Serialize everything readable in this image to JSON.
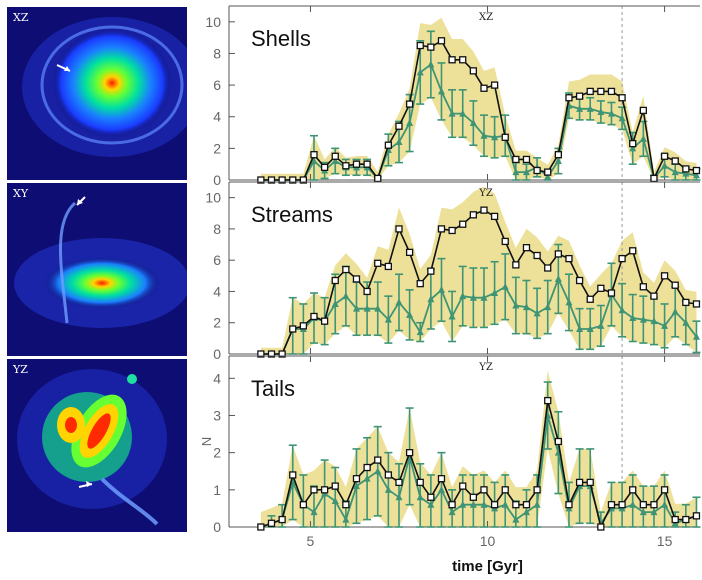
{
  "images": [
    {
      "label": "XZ",
      "icon": "shell-galaxy-arrow"
    },
    {
      "label": "XY",
      "icon": "stream-galaxy-arrow"
    },
    {
      "label": "YZ",
      "icon": "tail-galaxy-arrow"
    }
  ],
  "colors": {
    "band": "#ede19a",
    "black_line": "#111111",
    "green_line": "#3e9475",
    "vline": "#999999"
  },
  "chart_data": {
    "type": "line",
    "xlabel": "time [Gyr]",
    "xlim": [
      2.7,
      16.0
    ],
    "xticks": [
      5,
      10,
      15
    ],
    "vline_x": 13.8,
    "ylabel_shared": "N",
    "x": [
      3.6,
      3.9,
      4.2,
      4.5,
      4.8,
      5.1,
      5.4,
      5.7,
      6.0,
      6.3,
      6.6,
      6.9,
      7.2,
      7.5,
      7.8,
      8.1,
      8.4,
      8.7,
      9.0,
      9.3,
      9.6,
      9.9,
      10.2,
      10.5,
      10.8,
      11.1,
      11.4,
      11.7,
      12.0,
      12.3,
      12.6,
      12.9,
      13.2,
      13.5,
      13.8,
      14.1,
      14.4,
      14.7,
      15.0,
      15.3,
      15.6,
      15.9
    ],
    "panels": [
      {
        "title": "Shells",
        "projection": "XZ",
        "ylim": [
          0,
          11
        ],
        "yticks": [
          0,
          2,
          4,
          6,
          8,
          10
        ],
        "series": [
          {
            "values": [
              0,
              0,
              0,
              0,
              0,
              1.6,
              0.8,
              1.5,
              0.9,
              1.0,
              1.0,
              0.1,
              2.2,
              3.4,
              4.8,
              8.5,
              8.4,
              8.8,
              7.6,
              7.6,
              6.9,
              5.8,
              6.0,
              2.7,
              1.3,
              1.3,
              0.6,
              0.5,
              1.6,
              5.2,
              5.3,
              5.6,
              5.6,
              5.6,
              5.2,
              2.3,
              4.4,
              0.1,
              1.5,
              1.2,
              0.7,
              0.6
            ]
          },
          {
            "values": [
              0,
              0,
              0,
              0,
              0,
              1.2,
              0.6,
              1.2,
              0.8,
              0.8,
              0.8,
              0.1,
              1.9,
              2.4,
              3.6,
              6.8,
              7.3,
              5.6,
              4.2,
              4.2,
              3.6,
              2.8,
              2.7,
              2.8,
              0.5,
              0.5,
              0.8,
              0.2,
              1.2,
              4.7,
              4.5,
              4.5,
              4.3,
              4.2,
              3.9,
              2.0,
              2.6,
              0.1,
              0.9,
              0.5,
              0.4,
              0.3
            ],
            "err": [
              0,
              0,
              0,
              0,
              0,
              1.6,
              0.5,
              0.8,
              0.5,
              0.5,
              0.5,
              0.1,
              1.0,
              1.3,
              1.8,
              2.0,
              2.1,
              1.8,
              1.5,
              1.5,
              1.4,
              1.3,
              1.3,
              1.3,
              0.6,
              0.5,
              0.6,
              0.3,
              0.8,
              0.8,
              0.7,
              0.7,
              0.7,
              0.7,
              0.7,
              1.0,
              1.1,
              0.2,
              0.7,
              0.5,
              0.4,
              0.4
            ]
          }
        ]
      },
      {
        "title": "Streams",
        "projection": "YZ",
        "ylim": [
          0,
          11
        ],
        "yticks": [
          0,
          2,
          4,
          6,
          8,
          10
        ],
        "series": [
          {
            "values": [
              0,
              0,
              0,
              1.6,
              1.8,
              2.4,
              2.1,
              4.7,
              5.4,
              4.8,
              4.0,
              5.8,
              5.6,
              8.0,
              6.5,
              4.5,
              5.3,
              8.0,
              7.9,
              8.3,
              8.9,
              9.2,
              8.8,
              7.2,
              5.7,
              6.8,
              6.3,
              5.5,
              6.4,
              6.1,
              4.7,
              3.5,
              4.2,
              3.9,
              6.1,
              6.6,
              4.3,
              3.7,
              5.0,
              4.4,
              3.3,
              3.2
            ]
          },
          {
            "values": [
              0,
              0,
              0,
              1.6,
              1.6,
              2.3,
              2.1,
              3.2,
              3.7,
              2.9,
              2.9,
              2.9,
              2.2,
              3.3,
              2.5,
              1.4,
              3.5,
              4.1,
              2.4,
              3.7,
              3.6,
              3.6,
              3.9,
              4.3,
              3.1,
              3.0,
              2.6,
              3.0,
              4.8,
              3.3,
              1.6,
              1.6,
              1.8,
              3.8,
              2.8,
              2.3,
              2.2,
              2.1,
              1.8,
              2.7,
              2.0,
              1.1
            ],
            "err": [
              0,
              0,
              0,
              2.0,
              1.6,
              1.6,
              1.5,
              1.9,
              1.9,
              1.7,
              1.7,
              1.7,
              1.5,
              1.8,
              1.6,
              0.6,
              1.9,
              2.0,
              1.6,
              1.9,
              1.9,
              1.9,
              2.0,
              2.1,
              1.8,
              1.7,
              1.6,
              1.7,
              2.2,
              1.8,
              1.3,
              1.3,
              1.3,
              2.0,
              1.7,
              1.5,
              1.5,
              1.5,
              1.4,
              1.6,
              1.4,
              1.0
            ]
          }
        ]
      },
      {
        "title": "Tails",
        "projection": "YZ",
        "ylim": [
          0,
          4.6
        ],
        "yticks": [
          0,
          1,
          2,
          3,
          4
        ],
        "ylabel": "N",
        "series": [
          {
            "values": [
              0,
              0.1,
              0.2,
              1.4,
              0.6,
              1.0,
              1.0,
              1.1,
              0.6,
              1.3,
              1.6,
              1.8,
              1.4,
              1.2,
              2.0,
              1.2,
              0.8,
              1.3,
              0.6,
              1.1,
              0.8,
              1.0,
              0.6,
              1.0,
              0.6,
              0.6,
              1.0,
              3.4,
              2.3,
              0.6,
              1.2,
              1.2,
              0.0,
              0.6,
              0.6,
              1.0,
              0.6,
              0.6,
              1.0,
              0.2,
              0.2,
              0.3
            ]
          },
          {
            "values": [
              0,
              0.1,
              0.2,
              1.2,
              0.6,
              0.4,
              0.9,
              0.7,
              0.2,
              1.1,
              1.3,
              1.5,
              1.0,
              0.8,
              1.9,
              0.8,
              0.6,
              1.0,
              0.4,
              0.6,
              0.6,
              0.6,
              0.5,
              0.6,
              0.2,
              0.4,
              0.6,
              3.0,
              2.0,
              0.5,
              1.1,
              1.1,
              0.1,
              0.5,
              0.5,
              0.6,
              0.4,
              0.4,
              0.6,
              0.1,
              0.2,
              0.3
            ],
            "err": [
              0,
              0.2,
              0.4,
              1.0,
              0.8,
              0.7,
              0.9,
              0.9,
              0.5,
              1.0,
              1.1,
              1.2,
              1.0,
              0.9,
              1.3,
              0.9,
              0.8,
              1.0,
              0.6,
              0.8,
              0.8,
              0.8,
              0.7,
              0.8,
              0.5,
              0.6,
              0.8,
              0.9,
              1.1,
              0.7,
              1.0,
              1.0,
              0.3,
              0.7,
              0.7,
              0.8,
              0.7,
              0.7,
              0.8,
              0.3,
              0.4,
              0.5
            ]
          }
        ]
      }
    ]
  }
}
